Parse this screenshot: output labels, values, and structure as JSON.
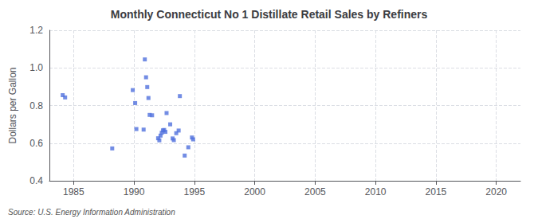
{
  "chart_data": {
    "type": "scatter",
    "title": "Monthly Connecticut No 1 Distillate Retail Sales by Refiners",
    "ylabel": "Dollars per Gallon",
    "annotations": [
      "Source: U.S. Energy Information Administration"
    ],
    "x": [
      1984.1,
      1984.3,
      1988.2,
      1989.9,
      1990.1,
      1990.2,
      1990.8,
      1990.9,
      1991.0,
      1991.1,
      1991.2,
      1991.3,
      1991.5,
      1992.0,
      1992.1,
      1992.2,
      1992.3,
      1992.4,
      1992.5,
      1992.6,
      1992.7,
      1993.0,
      1993.2,
      1993.3,
      1993.5,
      1993.7,
      1993.8,
      1994.2,
      1994.5,
      1994.8,
      1994.9
    ],
    "values": [
      0.855,
      0.843,
      0.572,
      0.882,
      0.813,
      0.675,
      0.672,
      1.045,
      0.95,
      0.898,
      0.84,
      0.75,
      0.748,
      0.626,
      0.615,
      0.64,
      0.655,
      0.668,
      0.67,
      0.66,
      0.76,
      0.7,
      0.625,
      0.616,
      0.653,
      0.667,
      0.85,
      0.534,
      0.578,
      0.63,
      0.62
    ],
    "xlim": [
      1983,
      2022
    ],
    "ylim": [
      0.4,
      1.2
    ],
    "xticks": [
      1985,
      1990,
      1995,
      2000,
      2005,
      2010,
      2015,
      2020
    ],
    "yticks": [
      0.4,
      0.6,
      0.8,
      {
        "value": 1.0,
        "label": "1.0"
      },
      1.2
    ],
    "marker": "square",
    "grid": true
  }
}
